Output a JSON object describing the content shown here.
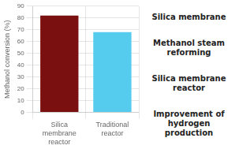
{
  "chart_data": {
    "type": "bar",
    "categories": [
      "Silica\nmembrane\nreactor",
      "Traditional\nreactor"
    ],
    "values": [
      82,
      68
    ],
    "colors": [
      "#7B1010",
      "#55CCEE"
    ],
    "y_label": "Methanol conversion (%)",
    "ylim": [
      0,
      90
    ],
    "yticks": [
      0,
      10,
      20,
      30,
      40,
      50,
      60,
      70,
      80,
      90
    ],
    "grid": true,
    "annotations": [
      "Silica membrane",
      "Methanol steam reforming",
      "Silica membrane reactor",
      "Improvement of\nhydrogen\nproduction"
    ]
  }
}
